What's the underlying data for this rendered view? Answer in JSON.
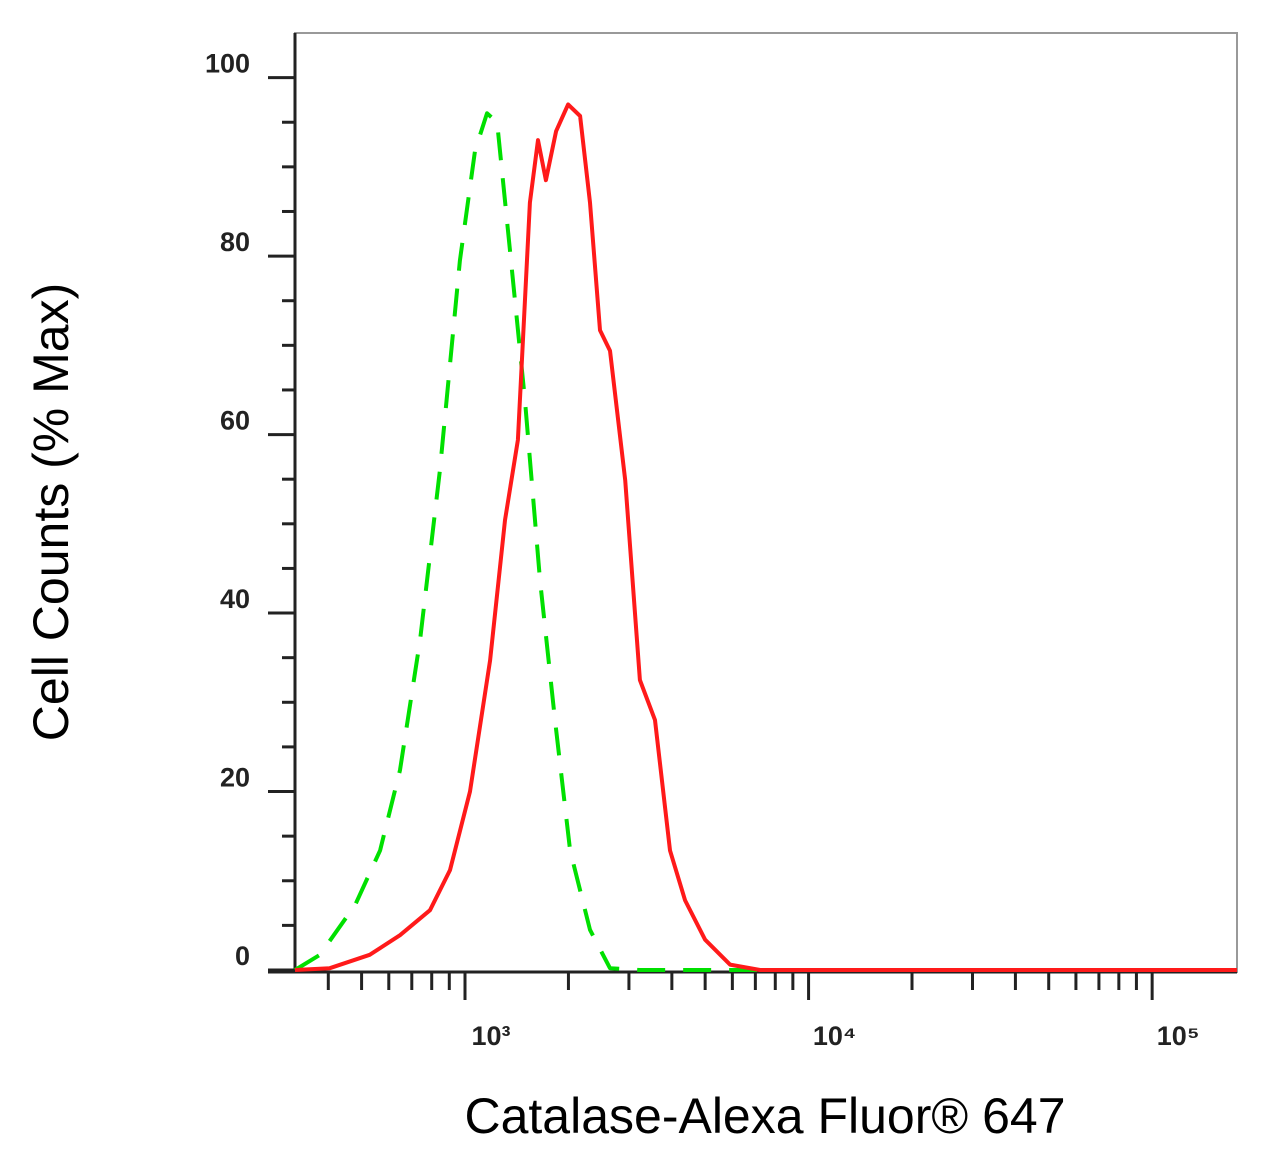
{
  "chart_data": {
    "type": "line",
    "xlabel": "Catalase-Alexa Fluor® 647",
    "ylabel": "Cell Counts (% Max)",
    "xscale": "log",
    "xlim": [
      320,
      176600
    ],
    "ylim": [
      0,
      105
    ],
    "xticks": [
      {
        "value": 1000,
        "label": "10³"
      },
      {
        "value": 10000,
        "label": "10⁴"
      },
      {
        "value": 100000,
        "label": "10⁵"
      }
    ],
    "xminorticks": [
      400,
      500,
      600,
      700,
      800,
      900,
      2000,
      3000,
      4000,
      5000,
      6000,
      7000,
      8000,
      9000,
      20000,
      30000,
      40000,
      50000,
      60000,
      70000,
      80000,
      90000
    ],
    "yticks": [
      0,
      20,
      40,
      60,
      80,
      100
    ],
    "yminorticks": [
      5,
      10,
      15,
      25,
      30,
      35,
      45,
      50,
      55,
      65,
      70,
      75,
      85,
      90,
      95
    ],
    "series": [
      {
        "color": "#00e000",
        "dash": true,
        "x": [
          320,
          378,
          479,
          566,
          647,
          740,
          845,
          966,
          1069,
          1159,
          1240,
          1352,
          1495,
          1653,
          1828,
          2022,
          2311,
          2643,
          3229,
          176600
        ],
        "values": [
          0,
          1.7,
          7.3,
          13.4,
          22.4,
          37,
          56,
          79.5,
          91.8,
          96,
          95,
          80.6,
          63.8,
          43.7,
          28,
          13.4,
          4.5,
          0.2,
          0,
          0
        ]
      },
      {
        "color": "#ff1a1a",
        "dash": false,
        "x": [
          320,
          404,
          528,
          647,
          791,
          904,
          1034,
          1183,
          1307,
          1425,
          1545,
          1631,
          1720,
          1841,
          1995,
          2162,
          2311,
          2471,
          2643,
          2925,
          3229,
          3572,
          3951,
          4370,
          4999,
          5905,
          7224,
          176600
        ],
        "values": [
          0,
          0.2,
          1.7,
          3.9,
          6.7,
          11.2,
          20,
          34.7,
          50.4,
          59.4,
          86,
          93,
          88.5,
          94,
          97,
          95.7,
          86,
          71.7,
          69.4,
          54.9,
          32.5,
          28,
          13.4,
          7.8,
          3.4,
          0.6,
          0,
          0
        ]
      }
    ]
  }
}
